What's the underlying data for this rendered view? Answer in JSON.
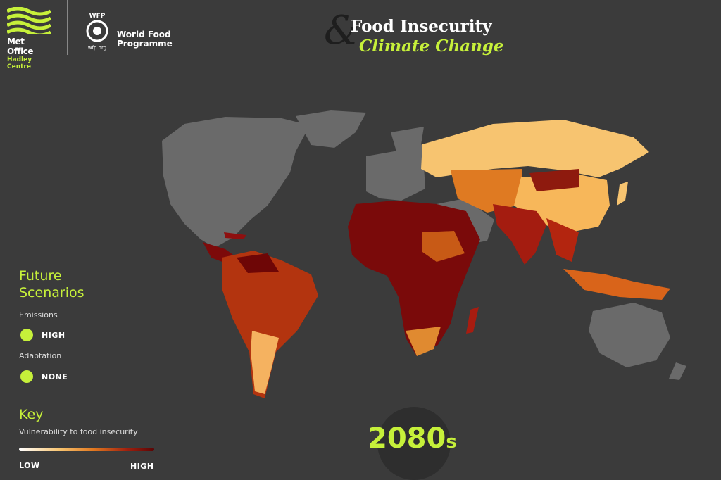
{
  "header": {
    "met_office": {
      "name": "Met Office",
      "subtitle": "Hadley Centre"
    },
    "wfp": {
      "acronym": "WFP",
      "name_line1": "World Food",
      "name_line2": "Programme",
      "url": "wfp.org"
    },
    "title": {
      "ampersand": "&",
      "line1": "Food Insecurity",
      "line2": "Climate Change"
    }
  },
  "scenarios": {
    "title": "Future Scenarios",
    "emissions": {
      "label": "Emissions",
      "option": "HIGH"
    },
    "adaptation": {
      "label": "Adaptation",
      "option": "NONE"
    }
  },
  "key": {
    "title": "Key",
    "description": "Vulnerability to food insecurity",
    "low": "LOW",
    "high": "HIGH"
  },
  "period": {
    "decade": "2080",
    "suffix": "s"
  }
}
